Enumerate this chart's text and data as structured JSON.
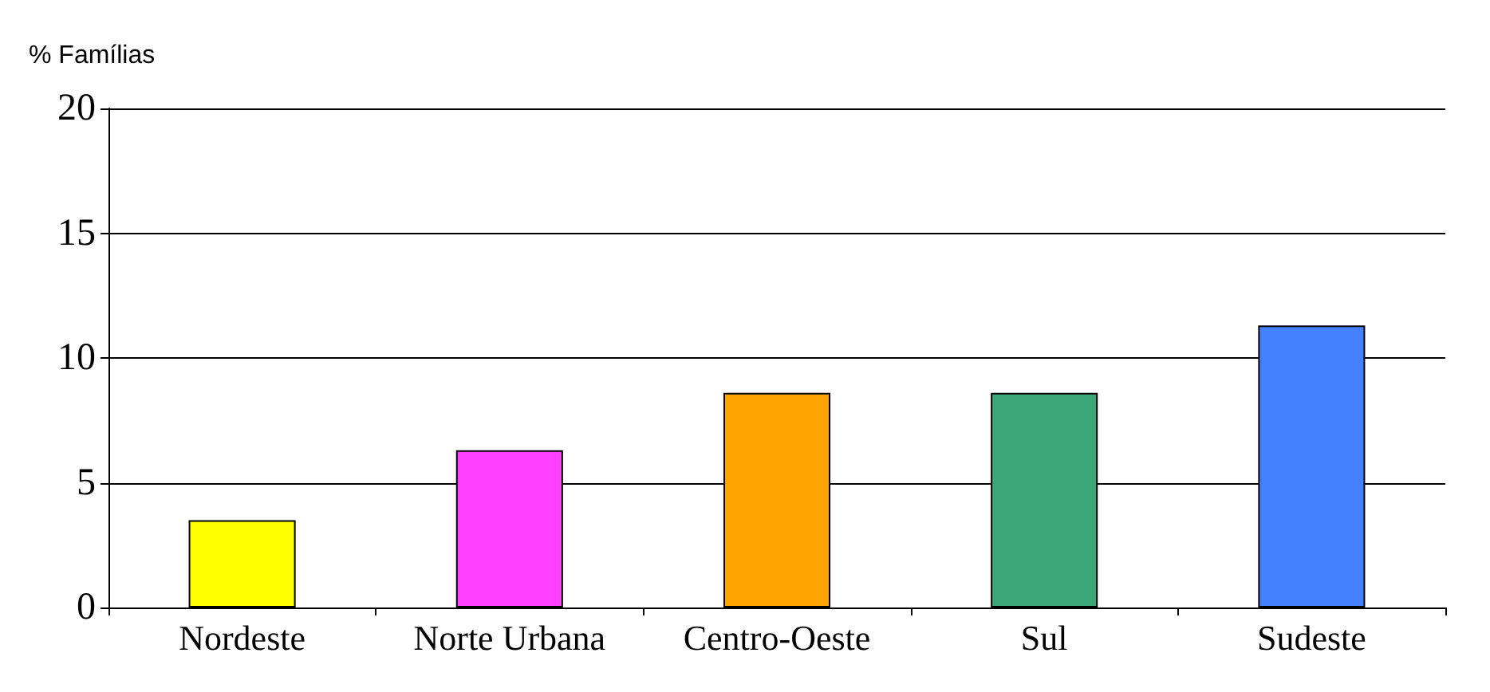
{
  "chart_data": {
    "type": "bar",
    "ylabel": "% Famílias",
    "categories": [
      "Nordeste",
      "Norte Urbana",
      "Centro-Oeste",
      "Sul",
      "Sudeste"
    ],
    "values": [
      3.5,
      6.3,
      8.6,
      8.6,
      11.3
    ],
    "colors": [
      "#ffff00",
      "#ff40ff",
      "#ffa500",
      "#3ea77a",
      "#4480ff"
    ],
    "ylim": [
      0,
      20
    ],
    "yticks": [
      0,
      5,
      10,
      15,
      20
    ],
    "grid": "y"
  }
}
